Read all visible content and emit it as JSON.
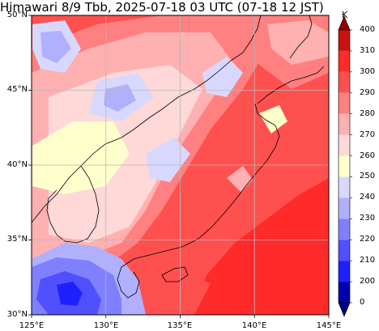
{
  "title": "Himawari 8/9 Tbb, 2025-07-18 03 UTC (07-18 12 JST)",
  "map": {
    "lon_range": [
      125,
      145
    ],
    "lat_range": [
      30,
      50
    ],
    "xticks": [
      "125°E",
      "130°E",
      "135°E",
      "140°E",
      "145°E"
    ],
    "yticks": [
      "50°N",
      "45°N",
      "40°N",
      "35°N",
      "30°N"
    ],
    "grid": true
  },
  "colorbar": {
    "unit": "K",
    "levels": [
      "400",
      "310",
      "300",
      "290",
      "280",
      "270",
      "260",
      "250",
      "240",
      "230",
      "220",
      "210",
      "200",
      "0"
    ],
    "colors": [
      "#8b0000",
      "#cc1111",
      "#ff2a2a",
      "#ff5050",
      "#ff8080",
      "#ffb0b0",
      "#ffd8d8",
      "#ffffcc",
      "#d8d8ff",
      "#b0b0ff",
      "#8080ff",
      "#5050ff",
      "#2020ff",
      "#0000b0",
      "#000080"
    ]
  }
}
